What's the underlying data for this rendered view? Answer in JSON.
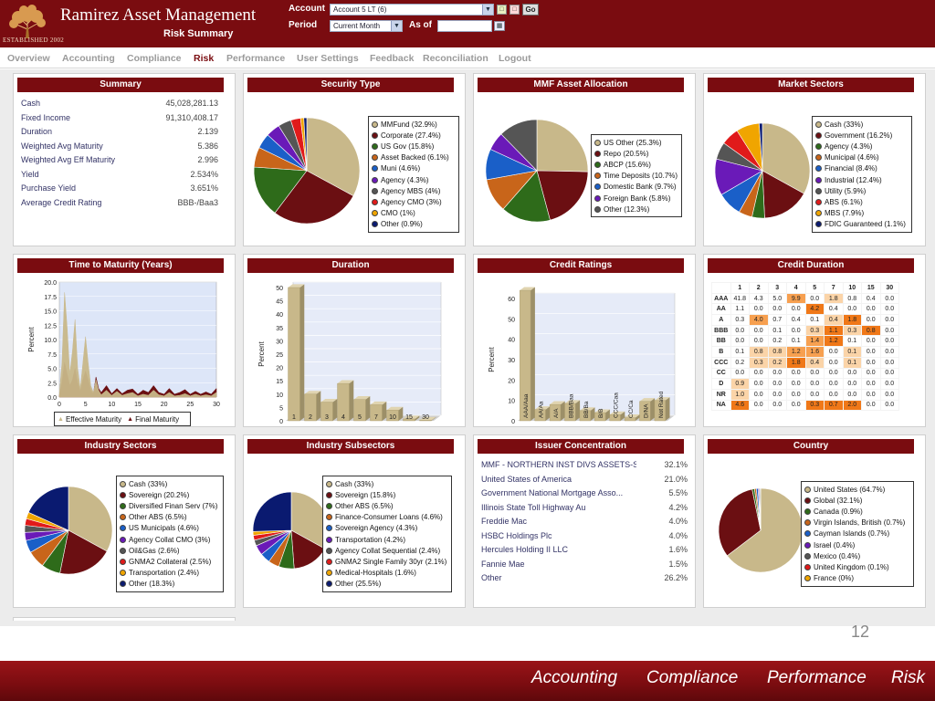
{
  "header": {
    "brand": "Ramirez Asset Management",
    "established": "ESTABLISHED 2002",
    "page_title": "Risk Summary",
    "account_label": "Account",
    "account_value": "Account 5 LT  (6)",
    "period_label": "Period",
    "period_value": "Current Month",
    "asof_label": "As of",
    "asof_value": "",
    "go_label": "Go"
  },
  "nav": {
    "items": [
      "Overview",
      "Accounting",
      "Compliance",
      "Risk",
      "Performance",
      "User Settings",
      "Feedback",
      "Reconciliation",
      "Logout"
    ],
    "active": "Risk"
  },
  "summary": {
    "title": "Summary",
    "rows": [
      {
        "label": "Cash",
        "value": "45,028,281.13"
      },
      {
        "label": "Fixed Income",
        "value": "91,310,408.17"
      },
      {
        "label": "Duration",
        "value": "2.139"
      },
      {
        "label": "Weighted Avg Maturity",
        "value": "5.386"
      },
      {
        "label": "Weighted Avg Eff Maturity",
        "value": "2.996"
      },
      {
        "label": "Yield",
        "value": "2.534%"
      },
      {
        "label": "Purchase Yield",
        "value": "3.651%"
      },
      {
        "label": "Average Credit Rating",
        "value": "BBB-/Baa3"
      }
    ]
  },
  "panels": {
    "security_type": "Security Type",
    "mmf_allocation": "MMF Asset Allocation",
    "market_sectors": "Market Sectors",
    "time_to_maturity": "Time to Maturity (Years)",
    "duration": "Duration",
    "credit_ratings": "Credit Ratings",
    "credit_duration": "Credit Duration",
    "industry_sectors": "Industry Sectors",
    "industry_subsectors": "Industry Subsectors",
    "issuer_concentration": "Issuer Concentration",
    "country": "Country"
  },
  "chart_data": [
    {
      "id": "security_type",
      "type": "pie",
      "title": "Security Type",
      "slices": [
        {
          "label": "MMFund (32.9%)",
          "value": 32.9,
          "color": "#c8b88a"
        },
        {
          "label": "Corporate (27.4%)",
          "value": 27.4,
          "color": "#6b0f12"
        },
        {
          "label": "US Gov (15.8%)",
          "value": 15.8,
          "color": "#2e6b1a"
        },
        {
          "label": "Asset Backed (6.1%)",
          "value": 6.1,
          "color": "#c8651a"
        },
        {
          "label": "Muni (4.6%)",
          "value": 4.6,
          "color": "#1a5fc8"
        },
        {
          "label": "Agency (4.3%)",
          "value": 4.3,
          "color": "#6a1ab8"
        },
        {
          "label": "Agency MBS (4%)",
          "value": 4.0,
          "color": "#555555"
        },
        {
          "label": "Agency CMO (3%)",
          "value": 3.0,
          "color": "#e01a1a"
        },
        {
          "label": "CMO (1%)",
          "value": 1.0,
          "color": "#f0a500"
        },
        {
          "label": "Other (0.9%)",
          "value": 0.9,
          "color": "#0a1a70"
        }
      ]
    },
    {
      "id": "mmf_allocation",
      "type": "pie",
      "title": "MMF Asset Allocation",
      "slices": [
        {
          "label": "US Other (25.3%)",
          "value": 25.3,
          "color": "#c8b88a"
        },
        {
          "label": "Repo (20.5%)",
          "value": 20.5,
          "color": "#6b0f12"
        },
        {
          "label": "ABCP (15.6%)",
          "value": 15.6,
          "color": "#2e6b1a"
        },
        {
          "label": "Time Deposits (10.7%)",
          "value": 10.7,
          "color": "#c8651a"
        },
        {
          "label": "Domestic Bank (9.7%)",
          "value": 9.7,
          "color": "#1a5fc8"
        },
        {
          "label": "Foreign Bank (5.8%)",
          "value": 5.8,
          "color": "#6a1ab8"
        },
        {
          "label": "Other (12.3%)",
          "value": 12.3,
          "color": "#555555"
        }
      ]
    },
    {
      "id": "market_sectors",
      "type": "pie",
      "title": "Market Sectors",
      "slices": [
        {
          "label": "Cash (33%)",
          "value": 33,
          "color": "#c8b88a"
        },
        {
          "label": "Government (16.2%)",
          "value": 16.2,
          "color": "#6b0f12"
        },
        {
          "label": "Agency (4.3%)",
          "value": 4.3,
          "color": "#2e6b1a"
        },
        {
          "label": "Municipal (4.6%)",
          "value": 4.6,
          "color": "#c8651a"
        },
        {
          "label": "Financial (8.4%)",
          "value": 8.4,
          "color": "#1a5fc8"
        },
        {
          "label": "Industrial (12.4%)",
          "value": 12.4,
          "color": "#6a1ab8"
        },
        {
          "label": "Utility (5.9%)",
          "value": 5.9,
          "color": "#555555"
        },
        {
          "label": "ABS (6.1%)",
          "value": 6.1,
          "color": "#e01a1a"
        },
        {
          "label": "MBS (7.9%)",
          "value": 7.9,
          "color": "#f0a500"
        },
        {
          "label": "FDIC Guaranteed (1.1%)",
          "value": 1.1,
          "color": "#0a1a70"
        }
      ]
    },
    {
      "id": "time_to_maturity",
      "type": "area",
      "title": "Time to Maturity (Years)",
      "ylabel": "Percent",
      "xlim": [
        0,
        30
      ],
      "ylim": [
        0,
        20
      ],
      "xticks": [
        0,
        5,
        10,
        15,
        20,
        25,
        30
      ],
      "yticks": [
        "0.0",
        "2.5",
        "5.0",
        "7.5",
        "10.0",
        "12.5",
        "15.0",
        "17.5",
        "20.0"
      ],
      "x": [
        0,
        0.5,
        1,
        1.5,
        2,
        2.5,
        3,
        3.5,
        4,
        4.5,
        5,
        5.5,
        6,
        6.5,
        7,
        7.5,
        8,
        9,
        10,
        11,
        12,
        13,
        14,
        15,
        16,
        17,
        18,
        19,
        20,
        21,
        22,
        23,
        24,
        25,
        26,
        27,
        28,
        29,
        30
      ],
      "series": [
        {
          "name": "Effective Maturity",
          "color": "#c8b88a",
          "values": [
            0.5,
            6,
            18.2,
            12,
            4,
            8,
            13.5,
            5,
            1.5,
            6,
            10.5,
            6,
            2,
            0.8,
            3,
            1.2,
            0.4,
            1.2,
            0.3,
            1,
            0.3,
            0.6,
            0.8,
            0.2,
            0.5,
            0.3,
            1.2,
            0.4,
            0.2,
            0.8,
            0.2,
            0.3,
            0.6,
            0.2,
            0.5,
            0.2,
            0.4,
            0.2,
            0.8
          ]
        },
        {
          "name": "Final Maturity",
          "color": "#6b0f12",
          "values": [
            0.3,
            2.5,
            6,
            4,
            2,
            3,
            5,
            2.5,
            1,
            3,
            4.5,
            3,
            1.2,
            0.6,
            3.5,
            1.5,
            0.8,
            2,
            0.6,
            1.5,
            0.6,
            1.2,
            1.4,
            0.5,
            1.2,
            0.8,
            2,
            0.8,
            0.5,
            1.5,
            0.5,
            0.8,
            1.3,
            0.5,
            1,
            0.5,
            0.9,
            0.5,
            1.5
          ]
        }
      ]
    },
    {
      "id": "duration",
      "type": "bar",
      "title": "Duration",
      "ylabel": "Percent",
      "ylim": [
        0,
        50
      ],
      "yticks": [
        0,
        5,
        10,
        15,
        20,
        25,
        30,
        35,
        40,
        45,
        50
      ],
      "categories": [
        "1",
        "2",
        "3",
        "4",
        "5",
        "7",
        "10",
        "15",
        "30"
      ],
      "values": [
        50,
        10,
        7,
        14,
        8,
        6,
        4,
        0.7,
        0.2
      ]
    },
    {
      "id": "credit_ratings",
      "type": "bar",
      "title": "Credit Ratings",
      "ylabel": "Percent",
      "ylim": [
        0,
        60
      ],
      "yticks": [
        0,
        10,
        20,
        30,
        40,
        50,
        60
      ],
      "categories": [
        "AAA/Aaa",
        "AA/Aa",
        "A/A",
        "BBB/Baa",
        "BB/Ba",
        "B/B",
        "CCC/Caa",
        "CC/Ca",
        "D/NA",
        "Not Rated"
      ],
      "values": [
        64,
        5.5,
        8,
        8.5,
        5,
        4,
        3,
        1.5,
        9.5,
        10
      ]
    },
    {
      "id": "credit_duration",
      "type": "heatmap",
      "title": "Credit Duration",
      "columns": [
        "1",
        "2",
        "3",
        "4",
        "5",
        "7",
        "10",
        "15",
        "30"
      ],
      "rows": [
        {
          "label": "AAA",
          "values": [
            "41.8",
            "4.3",
            "5.0",
            "9.9",
            "0.0",
            "1.8",
            "0.8",
            "0.4",
            "0.0"
          ],
          "heat": [
            0,
            0,
            0,
            2,
            0,
            1,
            0,
            0,
            0
          ]
        },
        {
          "label": "AA",
          "values": [
            "1.1",
            "0.0",
            "0.0",
            "0.0",
            "4.2",
            "0.4",
            "0.0",
            "0.0",
            "0.0"
          ],
          "heat": [
            0,
            0,
            0,
            0,
            3,
            0,
            0,
            0,
            0
          ]
        },
        {
          "label": "A",
          "values": [
            "0.3",
            "4.0",
            "0.7",
            "0.4",
            "0.1",
            "0.4",
            "1.8",
            "0.0",
            "0.0"
          ],
          "heat": [
            0,
            2,
            0,
            0,
            0,
            1,
            3,
            0,
            0
          ]
        },
        {
          "label": "BBB",
          "values": [
            "0.0",
            "0.0",
            "0.1",
            "0.0",
            "0.3",
            "1.1",
            "0.3",
            "0.8",
            "0.0"
          ],
          "heat": [
            0,
            0,
            0,
            0,
            1,
            3,
            1,
            3,
            0
          ]
        },
        {
          "label": "BB",
          "values": [
            "0.0",
            "0.0",
            "0.2",
            "0.1",
            "1.4",
            "1.2",
            "0.1",
            "0.0",
            "0.0"
          ],
          "heat": [
            0,
            0,
            0,
            0,
            2,
            3,
            0,
            0,
            0
          ]
        },
        {
          "label": "B",
          "values": [
            "0.1",
            "0.8",
            "0.8",
            "1.2",
            "1.6",
            "0.0",
            "0.1",
            "0.0",
            "0.0"
          ],
          "heat": [
            0,
            1,
            1,
            2,
            2,
            0,
            1,
            0,
            0
          ]
        },
        {
          "label": "CCC",
          "values": [
            "0.2",
            "0.3",
            "0.2",
            "1.8",
            "0.4",
            "0.0",
            "0.1",
            "0.0",
            "0.0"
          ],
          "heat": [
            0,
            1,
            1,
            3,
            1,
            0,
            1,
            0,
            0
          ]
        },
        {
          "label": "CC",
          "values": [
            "0.0",
            "0.0",
            "0.0",
            "0.0",
            "0.0",
            "0.0",
            "0.0",
            "0.0",
            "0.0"
          ],
          "heat": [
            0,
            0,
            0,
            0,
            0,
            0,
            0,
            0,
            0
          ]
        },
        {
          "label": "D",
          "values": [
            "0.9",
            "0.0",
            "0.0",
            "0.0",
            "0.0",
            "0.0",
            "0.0",
            "0.0",
            "0.0"
          ],
          "heat": [
            1,
            0,
            0,
            0,
            0,
            0,
            0,
            0,
            0
          ]
        },
        {
          "label": "NR",
          "values": [
            "1.0",
            "0.0",
            "0.0",
            "0.0",
            "0.0",
            "0.0",
            "0.0",
            "0.0",
            "0.0"
          ],
          "heat": [
            1,
            0,
            0,
            0,
            0,
            0,
            0,
            0,
            0
          ]
        },
        {
          "label": "NA",
          "values": [
            "4.6",
            "0.0",
            "0.0",
            "0.0",
            "0.3",
            "0.7",
            "2.0",
            "0.0",
            "0.0"
          ],
          "heat": [
            3,
            0,
            0,
            0,
            3,
            3,
            3,
            0,
            0
          ]
        }
      ]
    },
    {
      "id": "industry_sectors",
      "type": "pie",
      "title": "Industry Sectors",
      "slices": [
        {
          "label": "Cash (33%)",
          "value": 33,
          "color": "#c8b88a"
        },
        {
          "label": "Sovereign (20.2%)",
          "value": 20.2,
          "color": "#6b0f12"
        },
        {
          "label": "Diversified Finan Serv (7%)",
          "value": 7,
          "color": "#2e6b1a"
        },
        {
          "label": "Other ABS (6.5%)",
          "value": 6.5,
          "color": "#c8651a"
        },
        {
          "label": "US Municipals (4.6%)",
          "value": 4.6,
          "color": "#1a5fc8"
        },
        {
          "label": "Agency Collat CMO (3%)",
          "value": 3,
          "color": "#6a1ab8"
        },
        {
          "label": "Oil&Gas (2.6%)",
          "value": 2.6,
          "color": "#555555"
        },
        {
          "label": "GNMA2 Collateral (2.5%)",
          "value": 2.5,
          "color": "#e01a1a"
        },
        {
          "label": "Transportation (2.4%)",
          "value": 2.4,
          "color": "#f0a500"
        },
        {
          "label": "Other (18.3%)",
          "value": 18.3,
          "color": "#0a1a70"
        }
      ]
    },
    {
      "id": "industry_subsectors",
      "type": "pie",
      "title": "Industry Subsectors",
      "slices": [
        {
          "label": "Cash (33%)",
          "value": 33,
          "color": "#c8b88a"
        },
        {
          "label": "Sovereign (15.8%)",
          "value": 15.8,
          "color": "#6b0f12"
        },
        {
          "label": "Other ABS (6.5%)",
          "value": 6.5,
          "color": "#2e6b1a"
        },
        {
          "label": "Finance-Consumer Loans (4.6%)",
          "value": 4.6,
          "color": "#c8651a"
        },
        {
          "label": "Sovereign Agency (4.3%)",
          "value": 4.3,
          "color": "#1a5fc8"
        },
        {
          "label": "Transportation (4.2%)",
          "value": 4.2,
          "color": "#6a1ab8"
        },
        {
          "label": "Agency Collat Sequential (2.4%)",
          "value": 2.4,
          "color": "#555555"
        },
        {
          "label": "GNMA2 Single Family 30yr (2.1%)",
          "value": 2.1,
          "color": "#e01a1a"
        },
        {
          "label": "Medical-Hospitals (1.6%)",
          "value": 1.6,
          "color": "#f0a500"
        },
        {
          "label": "Other (25.5%)",
          "value": 25.5,
          "color": "#0a1a70"
        }
      ]
    },
    {
      "id": "country",
      "type": "pie",
      "title": "Country",
      "slices": [
        {
          "label": "United States (64.7%)",
          "value": 64.7,
          "color": "#c8b88a"
        },
        {
          "label": "Global (32.1%)",
          "value": 32.1,
          "color": "#6b0f12"
        },
        {
          "label": "Canada (0.9%)",
          "value": 0.9,
          "color": "#2e6b1a"
        },
        {
          "label": "Virgin Islands, British (0.7%)",
          "value": 0.7,
          "color": "#c8651a"
        },
        {
          "label": "Cayman Islands (0.7%)",
          "value": 0.7,
          "color": "#1a5fc8"
        },
        {
          "label": "Israel (0.4%)",
          "value": 0.4,
          "color": "#6a1ab8"
        },
        {
          "label": "Mexico (0.4%)",
          "value": 0.4,
          "color": "#555555"
        },
        {
          "label": "United Kingdom (0.1%)",
          "value": 0.1,
          "color": "#e01a1a"
        },
        {
          "label": "France (0%)",
          "value": 0.05,
          "color": "#f0a500"
        }
      ]
    }
  ],
  "issuer_concentration": {
    "title": "Issuer Concentration",
    "rows": [
      {
        "name": "MMF - NORTHERN INST DIVS ASSETS-SH",
        "pct": "32.1%"
      },
      {
        "name": "United States of America",
        "pct": "21.0%"
      },
      {
        "name": "Government National Mortgage Asso...",
        "pct": "5.5%"
      },
      {
        "name": "Illinois State Toll Highway Au",
        "pct": "4.2%"
      },
      {
        "name": "Freddie Mac",
        "pct": "4.0%"
      },
      {
        "name": "HSBC Holdings Plc",
        "pct": "4.0%"
      },
      {
        "name": "Hercules Holding II LLC",
        "pct": "1.6%"
      },
      {
        "name": "Fannie Mae",
        "pct": "1.5%"
      },
      {
        "name": "Other",
        "pct": "26.2%"
      }
    ]
  },
  "footer": {
    "page_number": "12",
    "links": [
      "Accounting",
      "Compliance",
      "Performance",
      "Risk"
    ]
  },
  "colors": {
    "brand": "#7a0c10",
    "nav_inactive": "#9a9a9a",
    "heat_levels": [
      "#ffffff",
      "#fbd4a8",
      "#f7a050",
      "#f07818"
    ]
  }
}
